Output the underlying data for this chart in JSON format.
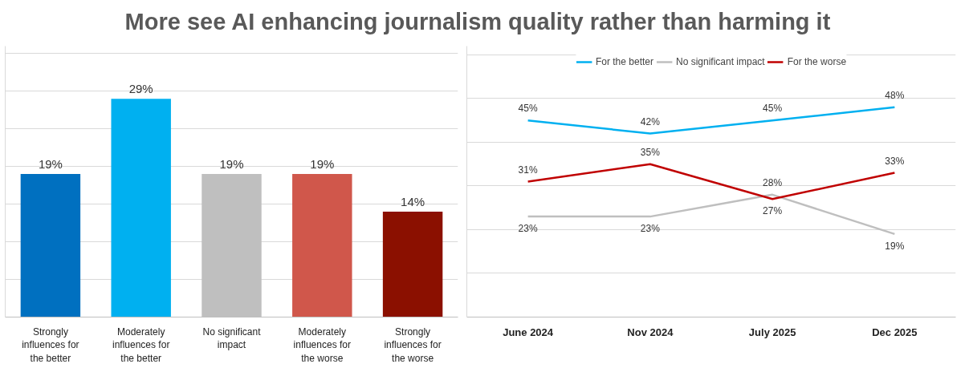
{
  "chart_data": [
    {
      "type": "bar",
      "title": "More see AI enhancing journalism quality rather than harming it",
      "categories": [
        "Strongly influences for the better",
        "Moderately influences for the better",
        "No significant impact",
        "Moderately influences for the worse",
        "Strongly influences for the worse"
      ],
      "values": [
        19,
        29,
        19,
        19,
        14
      ],
      "colors": [
        "#0070c0",
        "#00b0f0",
        "#bfbfbf",
        "#d0574b",
        "#8b1000"
      ],
      "value_labels": [
        "19%",
        "29%",
        "19%",
        "19%",
        "14%"
      ],
      "ylim": [
        0,
        36
      ],
      "yticks": [
        {
          "value": 0,
          "label": null
        },
        {
          "value": 5,
          "label": null
        },
        {
          "value": 10,
          "label": null
        },
        {
          "value": 15,
          "label": null
        },
        {
          "value": 20,
          "label": null
        },
        {
          "value": 25,
          "label": null
        },
        {
          "value": 30,
          "label": null
        },
        {
          "value": 35,
          "label": null
        }
      ],
      "grid": "y",
      "tick_labels": "x"
    },
    {
      "type": "line",
      "categories": [
        "June 2024",
        "Nov 2024",
        "July 2025",
        "Dec 2025"
      ],
      "series": [
        {
          "name": "For the better",
          "color": "#00b0f0",
          "values": [
            45,
            42,
            45,
            48
          ],
          "value_labels": [
            "45%",
            "42%",
            "45%",
            "48%"
          ]
        },
        {
          "name": "No significant impact",
          "color": "#bfbfbf",
          "values": [
            23,
            23,
            28,
            19
          ],
          "value_labels": [
            "23%",
            "23%",
            "28%",
            "19%"
          ]
        },
        {
          "name": "For the worse",
          "color": "#c00000",
          "values": [
            31,
            35,
            27,
            33
          ],
          "value_labels": [
            "31%",
            "35%",
            "27%",
            "33%"
          ]
        }
      ],
      "ylim": [
        0,
        62
      ],
      "yticks": [
        {
          "value": 0,
          "label": null
        },
        {
          "value": 10,
          "label": null
        },
        {
          "value": 20,
          "label": null
        },
        {
          "value": 30,
          "label": null
        },
        {
          "value": 40,
          "label": null
        },
        {
          "value": 50,
          "label": null
        },
        {
          "value": 60,
          "label": null
        }
      ],
      "grid": "y",
      "tick_labels": "x",
      "legend": "top",
      "marker": "none",
      "line_style": "solid"
    }
  ]
}
